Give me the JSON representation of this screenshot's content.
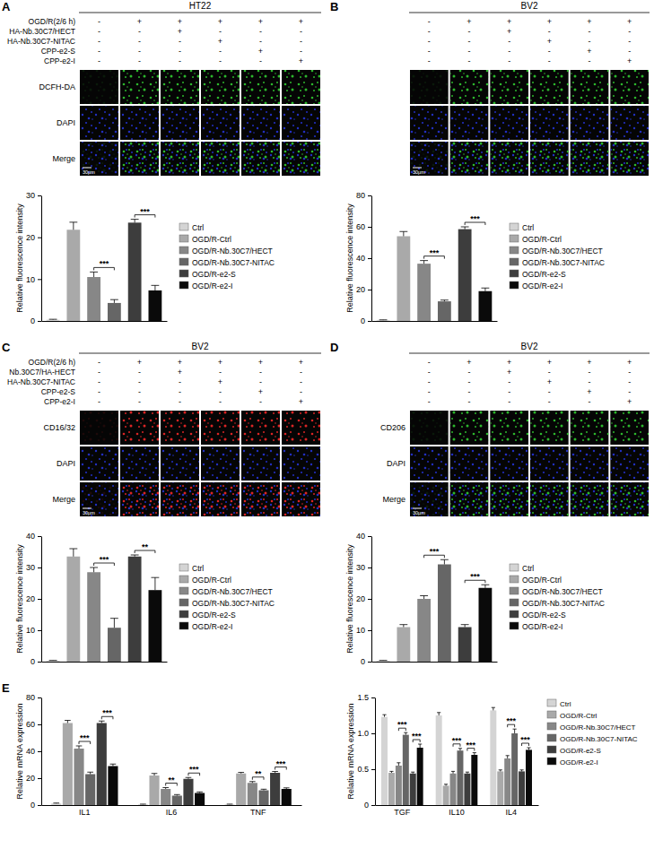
{
  "panel_letters": [
    "A",
    "B",
    "C",
    "D",
    "E"
  ],
  "panels": [
    {
      "title": "HT22",
      "conditions": [
        {
          "label": "OGD/R(2/6 h)",
          "signs": [
            "-",
            "+",
            "+",
            "+",
            "+",
            "+"
          ]
        },
        {
          "label": "HA-Nb.30C7/HECT",
          "signs": [
            "-",
            "-",
            "+",
            "-",
            "-",
            "-"
          ]
        },
        {
          "label": "HA-Nb.30C7-NITAC",
          "signs": [
            "-",
            "-",
            "-",
            "+",
            "-",
            "-"
          ]
        },
        {
          "label": "CPP-e2-S",
          "signs": [
            "-",
            "-",
            "-",
            "-",
            "+",
            "-"
          ]
        },
        {
          "label": "CPP-e2-I",
          "signs": [
            "-",
            "-",
            "-",
            "-",
            "-",
            "+"
          ]
        }
      ],
      "image_rows": [
        {
          "label": "DCFH-DA",
          "color": "#33d633"
        },
        {
          "label": "DAPI",
          "color": "#2b3cff"
        },
        {
          "label": "Merge"
        }
      ],
      "scale_bar": "30μm"
    },
    {
      "title": "BV2",
      "conditions": [
        {
          "signs": [
            "-",
            "+",
            "+",
            "+",
            "+",
            "+"
          ]
        },
        {
          "signs": [
            "-",
            "-",
            "+",
            "-",
            "-",
            "-"
          ]
        },
        {
          "signs": [
            "-",
            "-",
            "-",
            "+",
            "-",
            "-"
          ]
        },
        {
          "signs": [
            "-",
            "-",
            "-",
            "-",
            "+",
            "-"
          ]
        },
        {
          "signs": [
            "-",
            "-",
            "-",
            "-",
            "-",
            "+"
          ]
        }
      ],
      "image_rows": [
        {
          "color": "#33d633"
        },
        {
          "color": "#2b3cff"
        },
        {}
      ],
      "scale_bar": "30μm"
    },
    {
      "title": "BV2",
      "conditions": [
        {
          "label": "OGD/R(2/6 h)",
          "signs": [
            "-",
            "+",
            "+",
            "+",
            "+",
            "+"
          ]
        },
        {
          "label": "Nb.30C7/HA-HECT",
          "signs": [
            "-",
            "-",
            "+",
            "-",
            "-",
            "-"
          ]
        },
        {
          "label": "HA-Nb.30C7-NITAC",
          "signs": [
            "-",
            "-",
            "-",
            "+",
            "-",
            "-"
          ]
        },
        {
          "label": "CPP-e2-S",
          "signs": [
            "-",
            "-",
            "-",
            "-",
            "+",
            "-"
          ]
        },
        {
          "label": "CPP-e2-I",
          "signs": [
            "-",
            "-",
            "-",
            "-",
            "-",
            "+"
          ]
        }
      ],
      "image_rows": [
        {
          "label": "CD16/32",
          "color": "#ff2a2a"
        },
        {
          "label": "DAPI",
          "color": "#2b3cff"
        },
        {
          "label": "Merge"
        }
      ],
      "scale_bar": "30μm"
    },
    {
      "title": "BV2",
      "conditions": [
        {
          "signs": [
            "-",
            "+",
            "+",
            "+",
            "+",
            "+"
          ]
        },
        {
          "signs": [
            "-",
            "-",
            "+",
            "-",
            "-",
            "-"
          ]
        },
        {
          "signs": [
            "-",
            "-",
            "-",
            "+",
            "-",
            "-"
          ]
        },
        {
          "signs": [
            "-",
            "-",
            "-",
            "-",
            "+",
            "-"
          ]
        },
        {
          "signs": [
            "-",
            "-",
            "-",
            "-",
            "-",
            "+"
          ]
        }
      ],
      "image_rows": [
        {
          "label": "CD206",
          "color": "#33d633"
        },
        {
          "label": "DAPI",
          "color": "#2b3cff"
        },
        {
          "label": "Merge"
        }
      ],
      "scale_bar": "30μm"
    }
  ],
  "chart_data": [
    {
      "type": "bar",
      "y_label": "Relative fluorescence intensity",
      "tick_labels": "y",
      "legend": "right",
      "categories": [
        "Ctrl",
        "OGD/R-Ctrl",
        "OGD/R-Nb.30C7/HECT",
        "OGD/R-Nb.30C7-NITAC",
        "OGD/R-e2-S",
        "OGD/R-e2-I"
      ],
      "values": [
        0.3,
        21.8,
        10.5,
        4.3,
        23.5,
        7.3
      ],
      "errors": [
        0.1,
        1.8,
        1.2,
        0.8,
        0.8,
        1.2
      ],
      "colors": [
        "#d4d4d4",
        "#a9a9a9",
        "#878787",
        "#666666",
        "#3d3d3d",
        "#0a0a0a"
      ],
      "ylim": [
        0,
        30
      ],
      "yticks": [
        0,
        10,
        20,
        30
      ],
      "annotations": [
        {
          "text": "***",
          "between": [
            "OGD/R-Nb.30C7/HECT",
            "OGD/R-Nb.30C7-NITAC"
          ]
        },
        {
          "text": "***",
          "between": [
            "OGD/R-e2-S",
            "OGD/R-e2-I"
          ]
        }
      ]
    },
    {
      "type": "bar",
      "y_label": "Relative fluorescence intensity",
      "tick_labels": "y",
      "legend": "right",
      "categories": [
        "Ctrl",
        "OGD/R-Ctrl",
        "OGD/R-Nb.30C7/HECT",
        "OGD/R-Nb.30C7-NITAC",
        "OGD/R-e2-S",
        "OGD/R-e2-I"
      ],
      "values": [
        0.5,
        54,
        36.5,
        12.5,
        58.5,
        19
      ],
      "errors": [
        0.2,
        3,
        2,
        0.8,
        1.5,
        2
      ],
      "colors": [
        "#d4d4d4",
        "#a9a9a9",
        "#878787",
        "#666666",
        "#3d3d3d",
        "#0a0a0a"
      ],
      "ylim": [
        0,
        80
      ],
      "yticks": [
        0,
        20,
        40,
        60,
        80
      ],
      "annotations": [
        {
          "text": "***",
          "between": [
            "OGD/R-Nb.30C7/HECT",
            "OGD/R-Nb.30C7-NITAC"
          ]
        },
        {
          "text": "***",
          "between": [
            "OGD/R-e2-S",
            "OGD/R-e2-I"
          ]
        }
      ]
    },
    {
      "type": "bar",
      "y_label": "Relative fluorescence intensity",
      "tick_labels": "y",
      "legend": "right",
      "categories": [
        "Ctrl",
        "OGD/R-Ctrl",
        "OGD/R-Nb.30C7/HECT",
        "OGD/R-Nb.30C7-NITAC",
        "OGD/R-e2-S",
        "OGD/R-e2-I"
      ],
      "values": [
        0.3,
        33.5,
        28.5,
        10.8,
        33.5,
        22.8
      ],
      "errors": [
        0.1,
        2.5,
        1.5,
        3,
        0.5,
        4
      ],
      "colors": [
        "#d4d4d4",
        "#a9a9a9",
        "#878787",
        "#666666",
        "#3d3d3d",
        "#0a0a0a"
      ],
      "ylim": [
        0,
        40
      ],
      "yticks": [
        0,
        10,
        20,
        30,
        40
      ],
      "annotations": [
        {
          "text": "***",
          "between": [
            "OGD/R-Nb.30C7/HECT",
            "OGD/R-Nb.30C7-NITAC"
          ]
        },
        {
          "text": "**",
          "between": [
            "OGD/R-e2-S",
            "OGD/R-e2-I"
          ]
        }
      ]
    },
    {
      "type": "bar",
      "y_label": "Relative fluorescence intensity",
      "tick_labels": "y",
      "legend": "right",
      "categories": [
        "Ctrl",
        "OGD/R-Ctrl",
        "OGD/R-Nb.30C7/HECT",
        "OGD/R-Nb.30C7-NITAC",
        "OGD/R-e2-S",
        "OGD/R-e2-I"
      ],
      "values": [
        0.3,
        11,
        20,
        31,
        11,
        23.5
      ],
      "errors": [
        0.1,
        0.8,
        1,
        1.5,
        0.8,
        1
      ],
      "colors": [
        "#d4d4d4",
        "#a9a9a9",
        "#878787",
        "#666666",
        "#3d3d3d",
        "#0a0a0a"
      ],
      "ylim": [
        0,
        40
      ],
      "yticks": [
        0,
        10,
        20,
        30,
        40
      ],
      "annotations": [
        {
          "text": "***",
          "between": [
            "OGD/R-Nb.30C7/HECT",
            "OGD/R-Nb.30C7-NITAC"
          ]
        },
        {
          "text": "***",
          "between": [
            "OGD/R-e2-S",
            "OGD/R-e2-I"
          ]
        }
      ]
    },
    {
      "type": "bar",
      "y_label": "Relative mRNA expression",
      "categories": [
        "IL1",
        "IL6",
        "TNF"
      ],
      "series": [
        {
          "name": "Ctrl",
          "color": "#d4d4d4",
          "values": [
            1.2,
            0.5,
            0.5
          ],
          "errors": [
            0.3,
            0.2,
            0.2
          ]
        },
        {
          "name": "OGD/R-Ctrl",
          "color": "#a9a9a9",
          "values": [
            61,
            22,
            23.5
          ],
          "errors": [
            2,
            1.5,
            0.8
          ]
        },
        {
          "name": "OGD/R-Nb.30C7/HECT",
          "color": "#878787",
          "values": [
            42,
            12,
            16.5
          ],
          "errors": [
            2,
            1,
            1
          ]
        },
        {
          "name": "OGD/R-Nb.30C7-NITAC",
          "color": "#666666",
          "values": [
            23,
            7,
            11
          ],
          "errors": [
            1.5,
            0.8,
            0.8
          ]
        },
        {
          "name": "OGD/R-e2-S",
          "color": "#3d3d3d",
          "values": [
            61,
            19.5,
            24
          ],
          "errors": [
            1.5,
            1,
            1
          ]
        },
        {
          "name": "OGD/R-e2-I",
          "color": "#0a0a0a",
          "values": [
            29,
            9,
            12
          ],
          "errors": [
            1.5,
            0.8,
            0.8
          ]
        }
      ],
      "ylim": [
        0,
        80
      ],
      "yticks": [
        0,
        20,
        40,
        60,
        80
      ],
      "annotations": [
        {
          "text": "***",
          "category": "IL1",
          "between": [
            "OGD/R-Nb.30C7/HECT",
            "OGD/R-Nb.30C7-NITAC"
          ]
        },
        {
          "text": "***",
          "category": "IL1",
          "between": [
            "OGD/R-e2-S",
            "OGD/R-e2-I"
          ]
        },
        {
          "text": "**",
          "category": "IL6",
          "between": [
            "OGD/R-Nb.30C7/HECT",
            "OGD/R-Nb.30C7-NITAC"
          ]
        },
        {
          "text": "***",
          "category": "IL6",
          "between": [
            "OGD/R-e2-S",
            "OGD/R-e2-I"
          ]
        },
        {
          "text": "**",
          "category": "TNF",
          "between": [
            "OGD/R-Nb.30C7/HECT",
            "OGD/R-Nb.30C7-NITAC"
          ]
        },
        {
          "text": "***",
          "category": "TNF",
          "between": [
            "OGD/R-e2-S",
            "OGD/R-e2-I"
          ]
        }
      ]
    },
    {
      "type": "bar",
      "y_label": "Relative mRNA expression",
      "legend": "right",
      "categories": [
        "TGF",
        "IL10",
        "IL4"
      ],
      "series": [
        {
          "name": "Ctrl",
          "color": "#d4d4d4",
          "values": [
            1.23,
            1.25,
            1.32
          ],
          "errors": [
            0.03,
            0.04,
            0.04
          ]
        },
        {
          "name": "OGD/R-Ctrl",
          "color": "#a9a9a9",
          "values": [
            0.45,
            0.27,
            0.47
          ],
          "errors": [
            0.02,
            0.02,
            0.02
          ]
        },
        {
          "name": "OGD/R-Nb.30C7/HECT",
          "color": "#878787",
          "values": [
            0.55,
            0.44,
            0.65
          ],
          "errors": [
            0.04,
            0.03,
            0.04
          ]
        },
        {
          "name": "OGD/R-Nb.30C7-NITAC",
          "color": "#666666",
          "values": [
            0.98,
            0.76,
            1.0
          ],
          "errors": [
            0.03,
            0.03,
            0.06
          ]
        },
        {
          "name": "OGD/R-e2-S",
          "color": "#3d3d3d",
          "values": [
            0.44,
            0.44,
            0.47
          ],
          "errors": [
            0.02,
            0.02,
            0.02
          ]
        },
        {
          "name": "OGD/R-e2-I",
          "color": "#0a0a0a",
          "values": [
            0.8,
            0.7,
            0.77
          ],
          "errors": [
            0.05,
            0.03,
            0.03
          ]
        }
      ],
      "ylim": [
        0,
        1.5
      ],
      "yticks": [
        0,
        0.5,
        {
          "value": 1,
          "label": "1.0"
        },
        1.5
      ],
      "annotations": [
        {
          "text": "***",
          "category": "TGF",
          "between": [
            "OGD/R-Nb.30C7/HECT",
            "OGD/R-Nb.30C7-NITAC"
          ]
        },
        {
          "text": "***",
          "category": "TGF",
          "between": [
            "OGD/R-e2-S",
            "OGD/R-e2-I"
          ]
        },
        {
          "text": "***",
          "category": "IL10",
          "between": [
            "OGD/R-Nb.30C7/HECT",
            "OGD/R-Nb.30C7-NITAC"
          ]
        },
        {
          "text": "***",
          "category": "IL10",
          "between": [
            "OGD/R-e2-S",
            "OGD/R-e2-I"
          ]
        },
        {
          "text": "***",
          "category": "IL4",
          "between": [
            "OGD/R-Nb.30C7/HECT",
            "OGD/R-Nb.30C7-NITAC"
          ]
        },
        {
          "text": "***",
          "category": "IL4",
          "between": [
            "OGD/R-e2-S",
            "OGD/R-e2-I"
          ]
        }
      ]
    }
  ]
}
